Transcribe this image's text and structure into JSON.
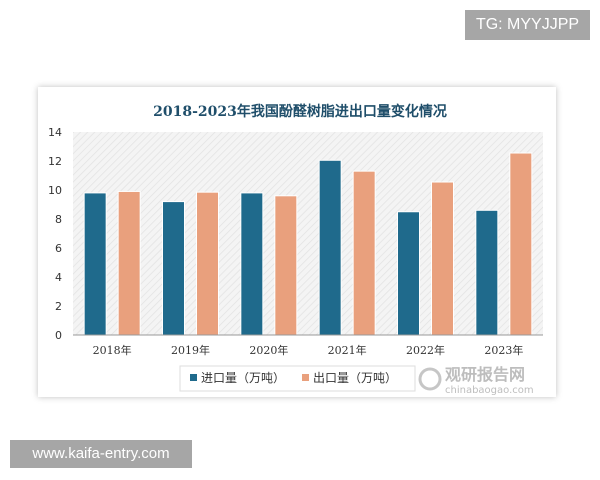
{
  "watermarks": {
    "top": "TG: MYYJJPP",
    "bottom": "www.kaifa-entry.com",
    "logo_cn": "观研报告网",
    "logo_en": "chinabaogao.com"
  },
  "chart_data": {
    "type": "bar",
    "title": "2018-2023年我国酚醛树脂进出口量变化情况",
    "categories": [
      "2018年",
      "2019年",
      "2020年",
      "2021年",
      "2022年",
      "2023年"
    ],
    "series": [
      {
        "name": "进口量（万吨）",
        "color": "#1f6a8c",
        "values": [
          9.8,
          9.2,
          9.8,
          12.05,
          8.5,
          8.6
        ]
      },
      {
        "name": "出口量（万吨）",
        "color": "#e9a07d",
        "values": [
          9.9,
          9.85,
          9.6,
          11.3,
          10.55,
          12.55
        ]
      }
    ],
    "ylim": [
      0,
      14
    ],
    "yticks": [
      "0",
      "2",
      "4",
      "6",
      "8",
      "10",
      "12",
      "14"
    ],
    "legend": "bottom",
    "grid": false
  }
}
